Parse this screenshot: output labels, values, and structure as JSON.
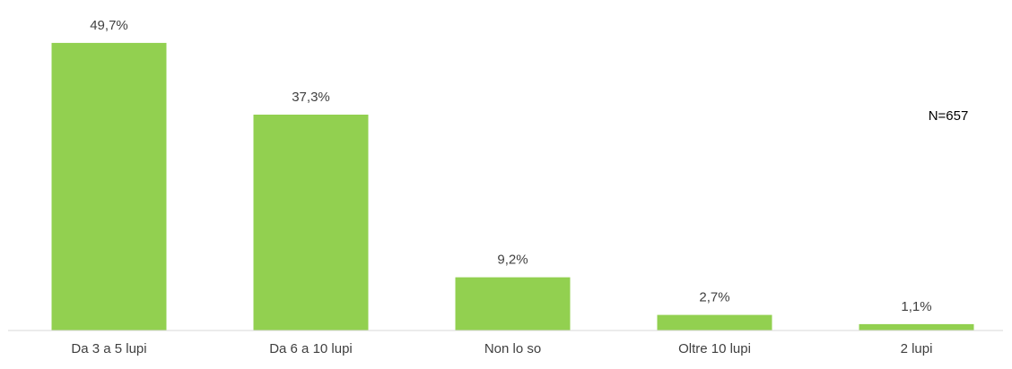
{
  "chart_data": {
    "type": "bar",
    "categories": [
      "Da 3 a 5 lupi",
      "Da 6 a 10 lupi",
      "Non lo so",
      "Oltre 10 lupi",
      "2 lupi"
    ],
    "values": [
      49.7,
      37.3,
      9.2,
      2.7,
      1.1
    ],
    "value_labels": [
      "49,7%",
      "37,3%",
      "9,2%",
      "2,7%",
      "1,1%"
    ],
    "annotation": "N=657",
    "ylim": [
      0,
      100
    ],
    "grid": false,
    "legend": "none",
    "colors": {
      "bar": "#92D050",
      "text": "#404040",
      "axis": "#d9d9d9",
      "annotation": "#000000"
    }
  }
}
